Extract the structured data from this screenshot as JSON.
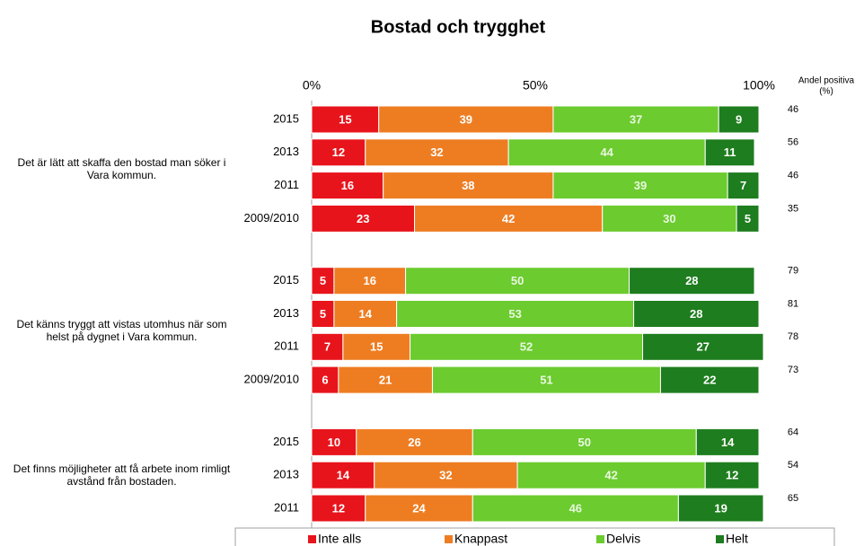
{
  "chart_data": {
    "type": "bar",
    "orientation": "horizontal",
    "stacked": true,
    "title": "Bostad och trygghet",
    "xlim": [
      0,
      100
    ],
    "xticks": [
      {
        "value": 0,
        "label": "0%"
      },
      {
        "value": 50,
        "label": "50%"
      },
      {
        "value": 100,
        "label": "100%"
      }
    ],
    "groups": [
      {
        "label": "Det är lätt att skaffa den bostad man söker i Vara kommun.",
        "categories": [
          "2015",
          "2013",
          "2011",
          "2009/2010"
        ]
      },
      {
        "label": "Det känns tryggt att vistas utomhus när som helst på dygnet i Vara kommun.",
        "categories": [
          "2015",
          "2013",
          "2011",
          "2009/2010"
        ]
      },
      {
        "label": "Det finns möjligheter att få arbete inom rimligt avstånd från bostaden.",
        "categories": [
          "2015",
          "2013",
          "2011"
        ]
      }
    ],
    "series": [
      {
        "name": "Inte alls",
        "color": "#e8141c",
        "values": [
          15,
          12,
          16,
          23,
          5,
          5,
          7,
          6,
          10,
          14,
          12
        ]
      },
      {
        "name": "Knappast",
        "color": "#ee7d22",
        "values": [
          39,
          32,
          38,
          42,
          16,
          14,
          15,
          21,
          26,
          32,
          24
        ]
      },
      {
        "name": "Delvis",
        "color": "#6ccb2e",
        "values": [
          37,
          44,
          39,
          30,
          50,
          53,
          52,
          51,
          50,
          42,
          46
        ]
      },
      {
        "name": "Helt",
        "color": "#1e7d1e",
        "values": [
          9,
          11,
          7,
          5,
          28,
          28,
          27,
          22,
          14,
          12,
          19
        ]
      }
    ],
    "positive_title": [
      "Andel positiva",
      "(%)"
    ],
    "positive": [
      46,
      56,
      46,
      35,
      79,
      81,
      78,
      73,
      64,
      54,
      65
    ],
    "legend": "bottom"
  }
}
